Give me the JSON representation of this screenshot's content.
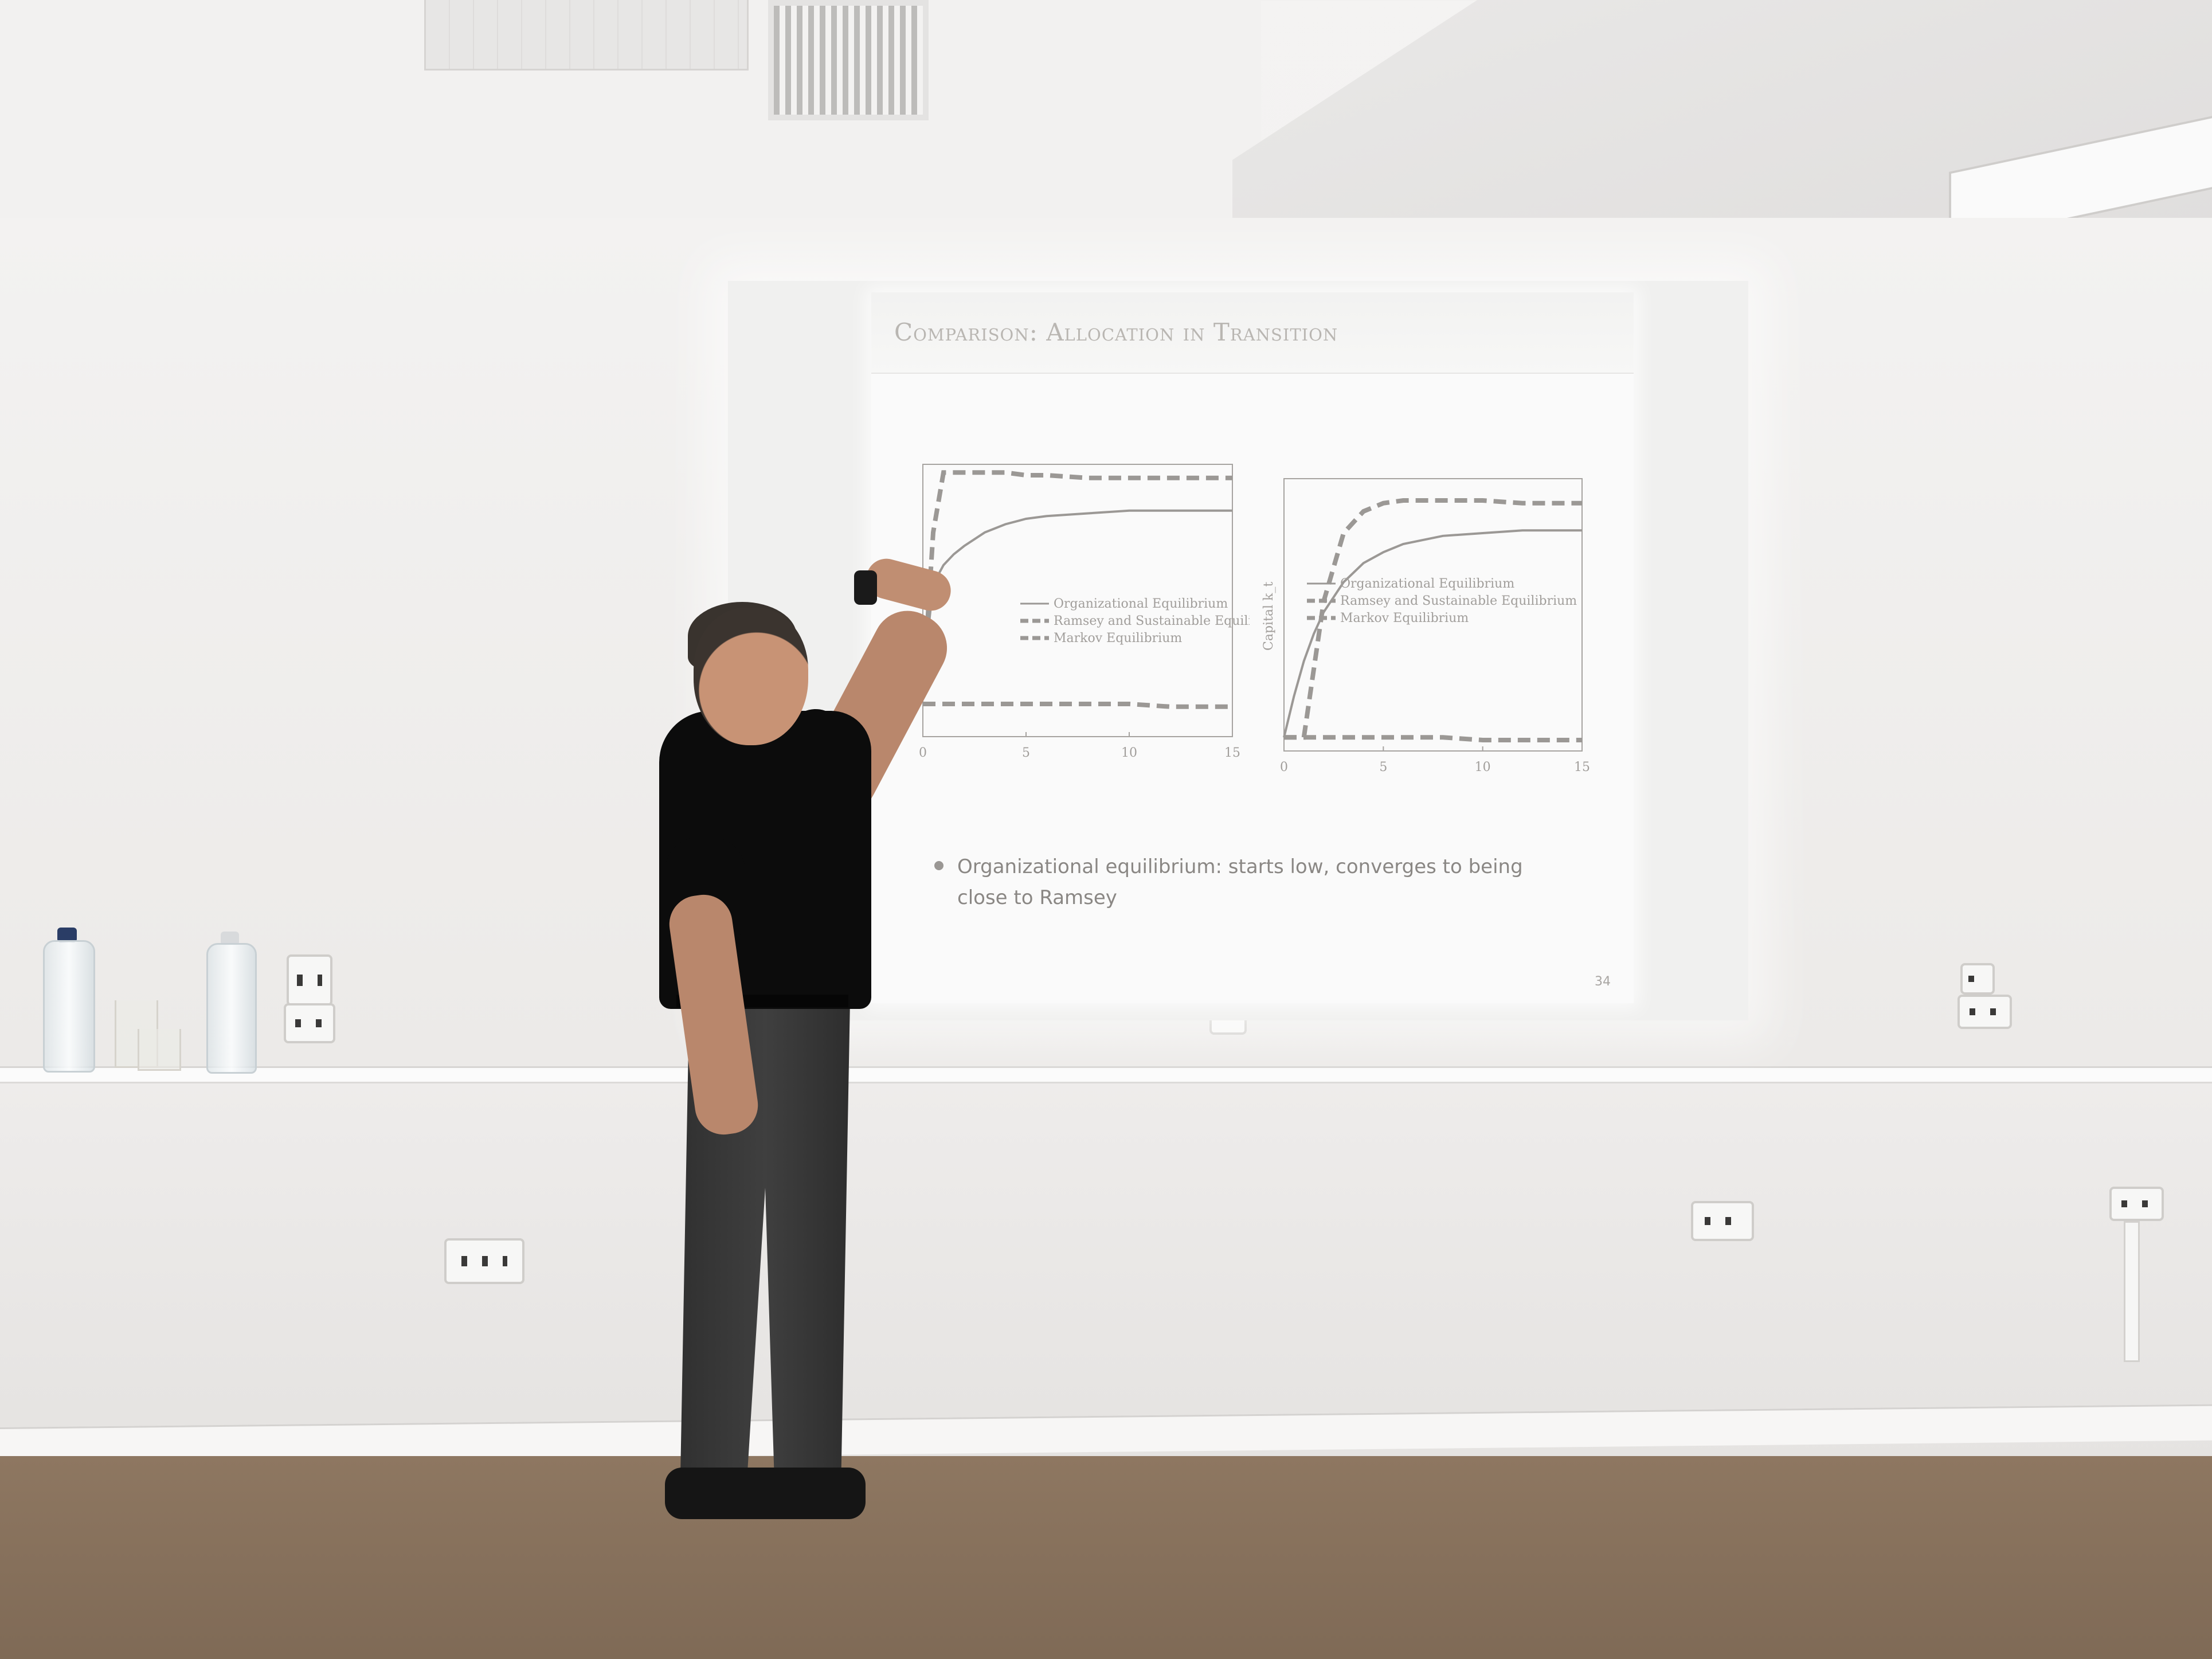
{
  "slide": {
    "title": "Comparison: Allocation in Transition",
    "bullet": "Organizational equilibrium: starts low, converges to being close to Ramsey",
    "page_number": "34"
  },
  "chart_data": [
    {
      "type": "line",
      "title": "",
      "xlabel": "",
      "ylabel": "",
      "xlim": [
        0,
        15
      ],
      "xticks": [
        0,
        5,
        10,
        15
      ],
      "grid": false,
      "legend_position": "middle-right",
      "x": [
        0,
        0.5,
        1,
        1.5,
        2,
        3,
        4,
        5,
        6,
        8,
        10,
        12,
        15
      ],
      "series": [
        {
          "name": "Organizational Equilibrium",
          "style": "solid",
          "values": [
            0.2,
            0.56,
            0.63,
            0.67,
            0.7,
            0.75,
            0.78,
            0.8,
            0.81,
            0.82,
            0.83,
            0.83,
            0.83
          ]
        },
        {
          "name": "Ramsey and Sustainable Equilibrium",
          "style": "dashed",
          "values": [
            0.15,
            0.75,
            0.97,
            0.97,
            0.97,
            0.97,
            0.97,
            0.96,
            0.96,
            0.95,
            0.95,
            0.95,
            0.95
          ]
        },
        {
          "name": "Markov Equilibrium",
          "style": "dashed",
          "values": [
            0.12,
            0.12,
            0.12,
            0.12,
            0.12,
            0.12,
            0.12,
            0.12,
            0.12,
            0.12,
            0.12,
            0.11,
            0.11
          ]
        }
      ]
    },
    {
      "type": "line",
      "title": "",
      "xlabel": "",
      "ylabel": "Capital k_t",
      "xlim": [
        0,
        15
      ],
      "xticks": [
        0,
        5,
        10,
        15
      ],
      "grid": false,
      "legend_position": "middle-right",
      "x": [
        0,
        0.5,
        1,
        1.5,
        2,
        3,
        4,
        5,
        6,
        8,
        10,
        12,
        15
      ],
      "series": [
        {
          "name": "Organizational Equilibrium",
          "style": "solid",
          "values": [
            0.05,
            0.2,
            0.33,
            0.43,
            0.51,
            0.62,
            0.69,
            0.73,
            0.76,
            0.79,
            0.8,
            0.81,
            0.81
          ]
        },
        {
          "name": "Ramsey and Sustainable Equilibrium",
          "style": "dashed",
          "values": [
            0.05,
            0.05,
            0.05,
            0.3,
            0.55,
            0.8,
            0.88,
            0.91,
            0.92,
            0.92,
            0.92,
            0.91,
            0.91
          ]
        },
        {
          "name": "Markov Equilibrium",
          "style": "dashed",
          "values": [
            0.05,
            0.05,
            0.05,
            0.05,
            0.05,
            0.05,
            0.05,
            0.05,
            0.05,
            0.05,
            0.04,
            0.04,
            0.04
          ]
        }
      ]
    }
  ],
  "colors": {
    "slide_background": "#fafafa",
    "slide_title": "#b9b6b2",
    "plot_lines": "#9b9895",
    "shirt": "#0c0c0c",
    "floor": "#8e7761"
  }
}
